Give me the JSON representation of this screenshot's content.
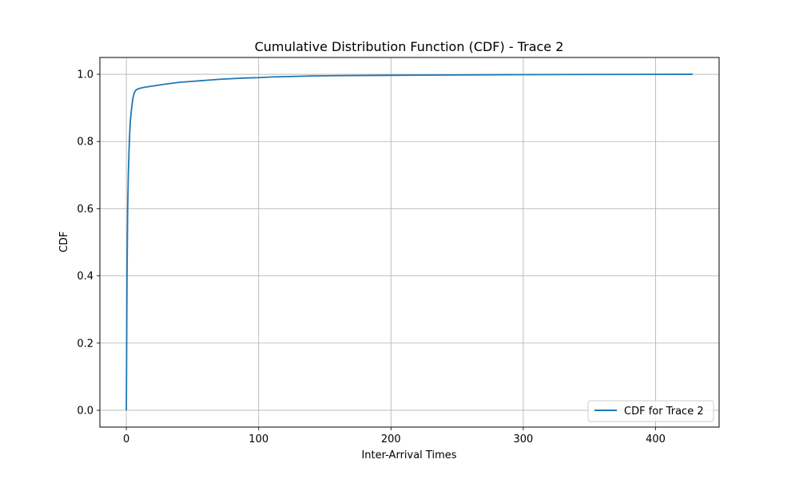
{
  "chart_data": {
    "type": "line",
    "title": "Cumulative Distribution Function (CDF) - Trace 2",
    "xlabel": "Inter-Arrival Times",
    "ylabel": "CDF",
    "xlim": [
      -20,
      448
    ],
    "ylim": [
      -0.05,
      1.05
    ],
    "xticks": [
      0,
      100,
      200,
      300,
      400
    ],
    "yticks": [
      0.0,
      0.2,
      0.4,
      0.6,
      0.8,
      1.0
    ],
    "xtick_labels": [
      "0",
      "100",
      "200",
      "300",
      "400"
    ],
    "ytick_labels": [
      "0.0",
      "0.2",
      "0.4",
      "0.6",
      "0.8",
      "1.0"
    ],
    "grid": true,
    "legend": {
      "position": "lower-right",
      "entries": [
        "CDF for Trace 2"
      ]
    },
    "series": [
      {
        "name": "CDF for Trace 2",
        "color": "#1f77b4",
        "x": [
          0,
          0.5,
          1,
          1.5,
          2,
          2.5,
          3,
          4,
          5,
          6,
          7,
          8,
          10,
          12,
          15,
          20,
          25,
          30,
          40,
          50,
          60,
          70,
          80,
          90,
          100,
          110,
          120,
          140,
          160,
          200,
          250,
          300,
          350,
          400,
          428
        ],
        "y": [
          0.0,
          0.4,
          0.6,
          0.7,
          0.77,
          0.82,
          0.86,
          0.9,
          0.93,
          0.945,
          0.952,
          0.955,
          0.958,
          0.96,
          0.962,
          0.965,
          0.968,
          0.971,
          0.976,
          0.979,
          0.982,
          0.985,
          0.987,
          0.989,
          0.99,
          0.992,
          0.993,
          0.995,
          0.996,
          0.997,
          0.998,
          0.999,
          0.9995,
          0.9998,
          1.0
        ]
      }
    ]
  }
}
